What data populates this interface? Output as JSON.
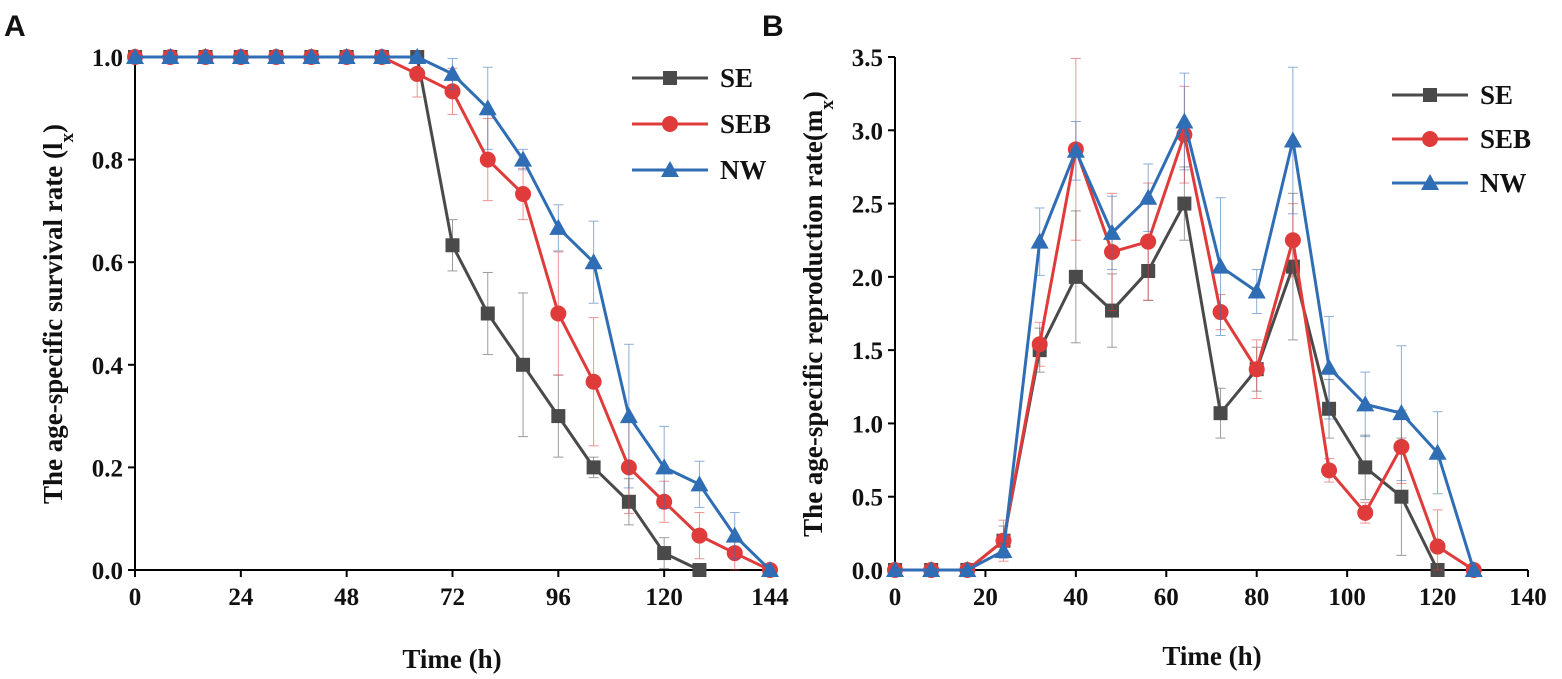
{
  "chart_data": [
    {
      "panel": "A",
      "type": "line",
      "xlabel": "Time (h)",
      "ylabel_prefix": "The age-specific survival rate (l",
      "ylabel_sub": "x",
      "ylabel_suffix": ")",
      "xlim": [
        0,
        144
      ],
      "ylim": [
        0,
        1
      ],
      "xticks": [
        0,
        24,
        48,
        72,
        96,
        120,
        144
      ],
      "yticks": [
        0,
        0.2,
        0.4,
        0.6,
        0.8,
        1.0
      ],
      "ytick_labels": [
        "0.0",
        "0.2",
        "0.4",
        "0.6",
        "0.8",
        "1.0"
      ],
      "legend_position": "top-right",
      "series": [
        {
          "name": "SE",
          "color": "#4a4a4a",
          "marker": "square",
          "x": [
            0,
            8,
            16,
            24,
            32,
            40,
            48,
            56,
            64,
            72,
            80,
            88,
            96,
            104,
            112,
            120,
            128
          ],
          "y": [
            1,
            1,
            1,
            1,
            1,
            1,
            1,
            1,
            1,
            0.633,
            0.5,
            0.4,
            0.3,
            0.2,
            0.133,
            0.033,
            0
          ],
          "err": [
            0,
            0,
            0,
            0,
            0,
            0,
            0,
            0,
            0,
            0.05,
            0.08,
            0.14,
            0.08,
            0.02,
            0.045,
            0.03,
            0
          ]
        },
        {
          "name": "SEB",
          "color": "#e03b3b",
          "marker": "circle",
          "x": [
            0,
            8,
            16,
            24,
            32,
            40,
            48,
            56,
            64,
            72,
            80,
            88,
            96,
            104,
            112,
            120,
            128,
            136,
            144
          ],
          "y": [
            1,
            1,
            1,
            1,
            1,
            1,
            1,
            1,
            0.967,
            0.933,
            0.8,
            0.733,
            0.5,
            0.367,
            0.2,
            0.133,
            0.067,
            0.033,
            0
          ],
          "err": [
            0,
            0,
            0,
            0,
            0,
            0,
            0,
            0,
            0.045,
            0.045,
            0.08,
            0.05,
            0.12,
            0.125,
            0.09,
            0.04,
            0.045,
            0.035,
            0
          ]
        },
        {
          "name": "NW",
          "color": "#2f6db5",
          "marker": "triangle",
          "x": [
            0,
            8,
            16,
            24,
            32,
            40,
            48,
            56,
            64,
            72,
            80,
            88,
            96,
            104,
            112,
            120,
            128,
            136,
            144
          ],
          "y": [
            1,
            1,
            1,
            1,
            1,
            1,
            1,
            1,
            1,
            0.967,
            0.9,
            0.8,
            0.667,
            0.6,
            0.3,
            0.2,
            0.167,
            0.067,
            0
          ],
          "err": [
            0,
            0,
            0,
            0,
            0,
            0,
            0,
            0,
            0,
            0.03,
            0.08,
            0.02,
            0.045,
            0.08,
            0.14,
            0.08,
            0.045,
            0.045,
            0
          ]
        }
      ]
    },
    {
      "panel": "B",
      "type": "line",
      "xlabel": "Time (h)",
      "ylabel_prefix": "The age-specific reproduction rate(m",
      "ylabel_sub": "x",
      "ylabel_suffix": ")",
      "xlim": [
        0,
        140
      ],
      "ylim": [
        0,
        3.5
      ],
      "xticks": [
        0,
        20,
        40,
        60,
        80,
        100,
        120,
        140
      ],
      "yticks": [
        0,
        0.5,
        1.0,
        1.5,
        2.0,
        2.5,
        3.0,
        3.5
      ],
      "ytick_labels": [
        "0.0",
        "0.5",
        "1.0",
        "1.5",
        "2.0",
        "2.5",
        "3.0",
        "3.5"
      ],
      "legend_position": "top-right",
      "series": [
        {
          "name": "SE",
          "color": "#4a4a4a",
          "marker": "square",
          "x": [
            0,
            8,
            16,
            24,
            32,
            40,
            48,
            56,
            64,
            72,
            80,
            88,
            96,
            104,
            112,
            120
          ],
          "y": [
            0,
            0,
            0,
            0.2,
            1.5,
            2.0,
            1.77,
            2.04,
            2.5,
            1.07,
            1.37,
            2.07,
            1.1,
            0.7,
            0.5,
            0
          ],
          "err": [
            0,
            0,
            0,
            0.1,
            0.15,
            0.45,
            0.25,
            0.2,
            0.25,
            0.17,
            0.15,
            0.5,
            0.2,
            0.22,
            0.4,
            0
          ]
        },
        {
          "name": "SEB",
          "color": "#e03b3b",
          "marker": "circle",
          "x": [
            0,
            8,
            16,
            24,
            32,
            40,
            48,
            56,
            64,
            72,
            80,
            88,
            96,
            104,
            112,
            120,
            128
          ],
          "y": [
            0,
            0,
            0,
            0.2,
            1.54,
            2.87,
            2.17,
            2.24,
            2.97,
            1.76,
            1.37,
            2.25,
            0.68,
            0.39,
            0.84,
            0.16,
            0
          ],
          "err": [
            0,
            0,
            0,
            0.14,
            0.15,
            0.62,
            0.4,
            0.4,
            0.33,
            0.12,
            0.2,
            0.25,
            0.08,
            0.07,
            0.25,
            0.25,
            0
          ]
        },
        {
          "name": "NW",
          "color": "#2f6db5",
          "marker": "triangle",
          "x": [
            0,
            8,
            16,
            24,
            32,
            40,
            48,
            56,
            64,
            72,
            80,
            88,
            96,
            104,
            112,
            120,
            128
          ],
          "y": [
            0,
            0,
            0,
            0.13,
            2.24,
            2.86,
            2.3,
            2.54,
            3.06,
            2.07,
            1.9,
            2.93,
            1.38,
            1.13,
            1.07,
            0.8,
            0
          ],
          "err": [
            0,
            0,
            0,
            0.05,
            0.23,
            0.2,
            0.25,
            0.23,
            0.33,
            0.47,
            0.15,
            0.5,
            0.35,
            0.22,
            0.46,
            0.28,
            0
          ]
        }
      ]
    }
  ]
}
